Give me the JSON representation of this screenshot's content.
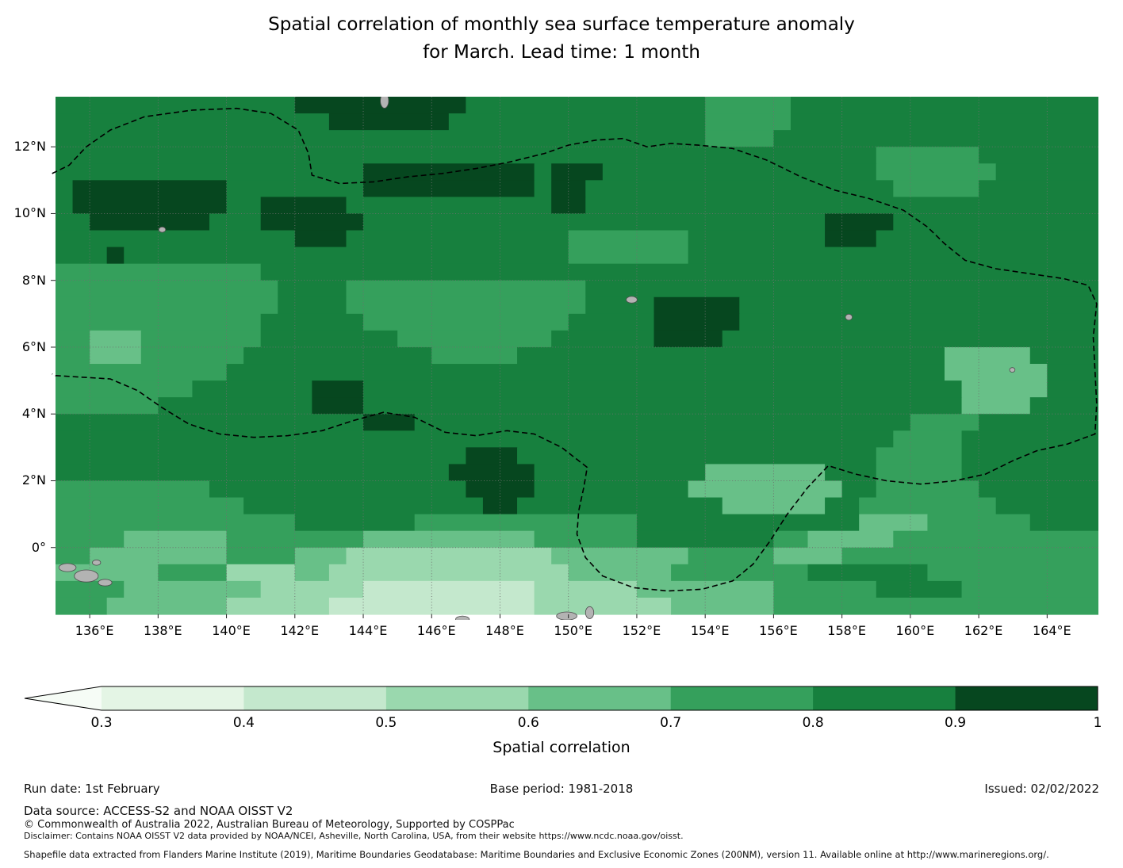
{
  "title": "Spatial correlation of monthly sea surface temperature anomaly\nfor March. Lead time: 1 month",
  "footer": {
    "run_date": "Run date: 1st February",
    "base_period": "Base period: 1981-2018",
    "issued": "Issued: 02/02/2022",
    "data_source": "Data source: ACCESS-S2 and NOAA OISST V2",
    "copyright": "© Commonwealth of Australia 2022, Australian Bureau of Meteorology, Supported by COSPPac",
    "disclaimer": "Disclaimer: Contains NOAA OISST V2 data provided by NOAA/NCEI, Asheville, North Carolina, USA, from their website https://www.ncdc.noaa.gov/oisst.",
    "shapefile": "Shapefile data extracted from Flanders Marine Institute (2019), Maritime Boundaries Geodatabase: Maritime Boundaries and Exclusive Economic Zones (200NM), version 11. Available online at http://www.marineregions.org/."
  },
  "chart_data": {
    "type": "heatmap",
    "title": "Spatial correlation of monthly sea surface temperature anomaly for March. Lead time: 1 month",
    "x_axis": {
      "range": [
        135,
        165.5
      ],
      "tick_values": [
        136,
        138,
        140,
        142,
        144,
        146,
        148,
        150,
        152,
        154,
        156,
        158,
        160,
        162,
        164
      ],
      "tick_labels": [
        "136°E",
        "138°E",
        "140°E",
        "142°E",
        "144°E",
        "146°E",
        "148°E",
        "150°E",
        "152°E",
        "154°E",
        "156°E",
        "158°E",
        "160°E",
        "162°E",
        "164°E"
      ]
    },
    "y_axis": {
      "range": [
        -2,
        13.5
      ],
      "tick_values": [
        0,
        2,
        4,
        6,
        8,
        10,
        12
      ],
      "tick_labels": [
        "0°",
        "2°N",
        "4°N",
        "6°N",
        "8°N",
        "10°N",
        "12°N"
      ]
    },
    "grid": {
      "lon_start": 135,
      "lat_top": 13.5,
      "cell_deg": 0.5,
      "cols": 61,
      "rows": 31
    },
    "bins": [
      {
        "range": "< 0.3",
        "color": "#f6fcf6"
      },
      {
        "range": "0.3-0.4",
        "color": "#e4f5e5"
      },
      {
        "range": "0.4-0.5",
        "color": "#c4e8cd"
      },
      {
        "range": "0.5-0.6",
        "color": "#9ad8ae"
      },
      {
        "range": "0.6-0.7",
        "color": "#68c088"
      },
      {
        "range": "0.7-0.8",
        "color": "#35a05c"
      },
      {
        "range": "0.8-0.9",
        "color": "#17803e"
      },
      {
        "range": "0.9-1.0",
        "color": "#06471f"
      }
    ],
    "rows_rle": [
      [
        [
          6,
          14
        ],
        [
          7,
          10
        ],
        [
          6,
          14
        ],
        [
          5,
          5
        ],
        [
          6,
          18
        ]
      ],
      [
        [
          6,
          16
        ],
        [
          7,
          7
        ],
        [
          6,
          15
        ],
        [
          5,
          5
        ],
        [
          6,
          18
        ]
      ],
      [
        [
          6,
          38
        ],
        [
          5,
          4
        ],
        [
          6,
          19
        ]
      ],
      [
        [
          6,
          48
        ],
        [
          5,
          6
        ],
        [
          6,
          7
        ]
      ],
      [
        [
          6,
          18
        ],
        [
          7,
          10
        ],
        [
          6,
          1
        ],
        [
          7,
          3
        ],
        [
          6,
          16
        ],
        [
          5,
          7
        ],
        [
          6,
          6
        ]
      ],
      [
        [
          6,
          1
        ],
        [
          7,
          9
        ],
        [
          6,
          8
        ],
        [
          7,
          10
        ],
        [
          6,
          1
        ],
        [
          7,
          2
        ],
        [
          6,
          18
        ],
        [
          5,
          5
        ],
        [
          6,
          7
        ]
      ],
      [
        [
          6,
          1
        ],
        [
          7,
          9
        ],
        [
          6,
          2
        ],
        [
          7,
          5
        ],
        [
          6,
          12
        ],
        [
          7,
          2
        ],
        [
          6,
          30
        ]
      ],
      [
        [
          6,
          2
        ],
        [
          7,
          7
        ],
        [
          6,
          3
        ],
        [
          7,
          6
        ],
        [
          6,
          27
        ],
        [
          7,
          4
        ],
        [
          6,
          12
        ]
      ],
      [
        [
          6,
          14
        ],
        [
          7,
          3
        ],
        [
          6,
          13
        ],
        [
          5,
          7
        ],
        [
          6,
          8
        ],
        [
          7,
          3
        ],
        [
          6,
          13
        ]
      ],
      [
        [
          6,
          3
        ],
        [
          7,
          1
        ],
        [
          6,
          26
        ],
        [
          5,
          7
        ],
        [
          6,
          24
        ]
      ],
      [
        [
          5,
          12
        ],
        [
          6,
          49
        ]
      ],
      [
        [
          5,
          13
        ],
        [
          6,
          4
        ],
        [
          5,
          14
        ],
        [
          6,
          30
        ]
      ],
      [
        [
          5,
          13
        ],
        [
          6,
          4
        ],
        [
          5,
          14
        ],
        [
          6,
          4
        ],
        [
          7,
          5
        ],
        [
          6,
          21
        ]
      ],
      [
        [
          5,
          12
        ],
        [
          6,
          6
        ],
        [
          5,
          12
        ],
        [
          6,
          5
        ],
        [
          7,
          5
        ],
        [
          6,
          21
        ]
      ],
      [
        [
          5,
          2
        ],
        [
          4,
          3
        ],
        [
          5,
          7
        ],
        [
          6,
          8
        ],
        [
          5,
          9
        ],
        [
          6,
          6
        ],
        [
          7,
          4
        ],
        [
          6,
          22
        ]
      ],
      [
        [
          5,
          2
        ],
        [
          4,
          3
        ],
        [
          5,
          6
        ],
        [
          6,
          11
        ],
        [
          5,
          5
        ],
        [
          6,
          25
        ],
        [
          4,
          5
        ],
        [
          6,
          4
        ]
      ],
      [
        [
          5,
          10
        ],
        [
          6,
          42
        ],
        [
          4,
          6
        ],
        [
          6,
          3
        ]
      ],
      [
        [
          5,
          8
        ],
        [
          6,
          7
        ],
        [
          7,
          3
        ],
        [
          6,
          35
        ],
        [
          4,
          5
        ],
        [
          6,
          3
        ]
      ],
      [
        [
          5,
          6
        ],
        [
          6,
          9
        ],
        [
          7,
          3
        ],
        [
          6,
          35
        ],
        [
          4,
          4
        ],
        [
          6,
          4
        ]
      ],
      [
        [
          6,
          18
        ],
        [
          7,
          3
        ],
        [
          6,
          29
        ],
        [
          5,
          4
        ],
        [
          6,
          7
        ]
      ],
      [
        [
          6,
          49
        ],
        [
          5,
          4
        ],
        [
          6,
          8
        ]
      ],
      [
        [
          6,
          24
        ],
        [
          7,
          3
        ],
        [
          6,
          21
        ],
        [
          5,
          5
        ],
        [
          6,
          8
        ]
      ],
      [
        [
          6,
          23
        ],
        [
          7,
          5
        ],
        [
          6,
          10
        ],
        [
          4,
          7
        ],
        [
          6,
          3
        ],
        [
          5,
          5
        ],
        [
          6,
          8
        ]
      ],
      [
        [
          5,
          9
        ],
        [
          6,
          15
        ],
        [
          7,
          4
        ],
        [
          6,
          9
        ],
        [
          4,
          9
        ],
        [
          6,
          2
        ],
        [
          5,
          6
        ],
        [
          6,
          7
        ]
      ],
      [
        [
          5,
          11
        ],
        [
          6,
          14
        ],
        [
          7,
          2
        ],
        [
          6,
          12
        ],
        [
          4,
          6
        ],
        [
          6,
          2
        ],
        [
          5,
          8
        ],
        [
          6,
          6
        ]
      ],
      [
        [
          5,
          14
        ],
        [
          6,
          7
        ],
        [
          5,
          13
        ],
        [
          6,
          13
        ],
        [
          4,
          4
        ],
        [
          5,
          6
        ],
        [
          6,
          4
        ]
      ],
      [
        [
          5,
          4
        ],
        [
          4,
          6
        ],
        [
          5,
          8
        ],
        [
          4,
          10
        ],
        [
          5,
          6
        ],
        [
          6,
          8
        ],
        [
          5,
          2
        ],
        [
          4,
          5
        ],
        [
          5,
          12
        ]
      ],
      [
        [
          5,
          2
        ],
        [
          4,
          8
        ],
        [
          5,
          4
        ],
        [
          4,
          3
        ],
        [
          3,
          12
        ],
        [
          4,
          8
        ],
        [
          5,
          5
        ],
        [
          4,
          4
        ],
        [
          5,
          15
        ]
      ],
      [
        [
          4,
          6
        ],
        [
          5,
          4
        ],
        [
          3,
          4
        ],
        [
          4,
          2
        ],
        [
          3,
          14
        ],
        [
          4,
          6
        ],
        [
          5,
          8
        ],
        [
          6,
          7
        ],
        [
          5,
          10
        ]
      ],
      [
        [
          5,
          4
        ],
        [
          4,
          8
        ],
        [
          3,
          6
        ],
        [
          2,
          10
        ],
        [
          3,
          6
        ],
        [
          4,
          8
        ],
        [
          5,
          6
        ],
        [
          6,
          5
        ],
        [
          5,
          8
        ]
      ],
      [
        [
          5,
          3
        ],
        [
          4,
          7
        ],
        [
          3,
          6
        ],
        [
          2,
          12
        ],
        [
          3,
          8
        ],
        [
          4,
          6
        ],
        [
          5,
          19
        ]
      ]
    ],
    "eez_boundary": [
      [
        134.9,
        11.2
      ],
      [
        135.4,
        11.45
      ],
      [
        135.9,
        12.0
      ],
      [
        136.6,
        12.5
      ],
      [
        137.6,
        12.9
      ],
      [
        139.0,
        13.1
      ],
      [
        140.3,
        13.15
      ],
      [
        141.3,
        13.0
      ],
      [
        142.1,
        12.5
      ],
      [
        142.4,
        11.8
      ],
      [
        142.5,
        11.15
      ],
      [
        143.3,
        10.9
      ],
      [
        144.3,
        10.95
      ],
      [
        145.3,
        11.1
      ],
      [
        146.3,
        11.2
      ],
      [
        147.3,
        11.35
      ],
      [
        148.3,
        11.55
      ],
      [
        149.3,
        11.8
      ],
      [
        150.0,
        12.05
      ],
      [
        150.8,
        12.2
      ],
      [
        151.6,
        12.25
      ],
      [
        152.3,
        12.0
      ],
      [
        153.0,
        12.1
      ],
      [
        153.8,
        12.05
      ],
      [
        154.8,
        11.95
      ],
      [
        155.8,
        11.6
      ],
      [
        156.8,
        11.1
      ],
      [
        157.8,
        10.7
      ],
      [
        158.8,
        10.45
      ],
      [
        159.8,
        10.1
      ],
      [
        160.5,
        9.6
      ],
      [
        161.0,
        9.1
      ],
      [
        161.6,
        8.6
      ],
      [
        162.5,
        8.35
      ],
      [
        163.5,
        8.2
      ],
      [
        164.5,
        8.05
      ],
      [
        165.2,
        7.85
      ],
      [
        165.45,
        7.3
      ],
      [
        165.35,
        6.3
      ],
      [
        165.4,
        5.3
      ],
      [
        165.45,
        4.3
      ],
      [
        165.4,
        3.4
      ],
      [
        164.6,
        3.1
      ],
      [
        163.7,
        2.9
      ],
      [
        163.0,
        2.6
      ],
      [
        162.2,
        2.2
      ],
      [
        161.3,
        2.0
      ],
      [
        160.3,
        1.9
      ],
      [
        159.3,
        2.0
      ],
      [
        158.4,
        2.2
      ],
      [
        157.6,
        2.45
      ],
      [
        157.0,
        1.8
      ],
      [
        156.4,
        1.0
      ],
      [
        155.9,
        0.2
      ],
      [
        155.4,
        -0.5
      ],
      [
        154.8,
        -1.0
      ],
      [
        153.9,
        -1.25
      ],
      [
        152.9,
        -1.3
      ],
      [
        151.9,
        -1.2
      ],
      [
        151.0,
        -0.85
      ],
      [
        150.5,
        -0.3
      ],
      [
        150.25,
        0.4
      ],
      [
        150.3,
        1.1
      ],
      [
        150.45,
        1.8
      ],
      [
        150.55,
        2.4
      ],
      [
        149.8,
        3.0
      ],
      [
        149.0,
        3.4
      ],
      [
        148.2,
        3.5
      ],
      [
        147.3,
        3.35
      ],
      [
        146.4,
        3.45
      ],
      [
        145.5,
        3.9
      ],
      [
        144.6,
        4.05
      ],
      [
        143.7,
        3.8
      ],
      [
        142.8,
        3.5
      ],
      [
        141.8,
        3.35
      ],
      [
        140.8,
        3.3
      ],
      [
        139.8,
        3.4
      ],
      [
        138.9,
        3.7
      ],
      [
        138.1,
        4.2
      ],
      [
        137.4,
        4.7
      ],
      [
        136.6,
        5.05
      ],
      [
        135.8,
        5.1
      ],
      [
        135.0,
        5.15
      ],
      [
        134.9,
        5.2
      ]
    ],
    "land": [
      [
        144.62,
        13.38,
        0.12,
        0.22
      ],
      [
        138.12,
        9.52,
        0.1,
        0.08
      ],
      [
        151.85,
        7.42,
        0.16,
        0.1
      ],
      [
        158.2,
        6.9,
        0.1,
        0.09
      ],
      [
        162.98,
        5.32,
        0.08,
        0.07
      ],
      [
        135.35,
        -0.6,
        0.25,
        0.12
      ],
      [
        135.9,
        -0.85,
        0.35,
        0.18
      ],
      [
        136.45,
        -1.05,
        0.2,
        0.1
      ],
      [
        136.2,
        -0.45,
        0.12,
        0.08
      ],
      [
        146.9,
        -2.15,
        0.2,
        0.1
      ],
      [
        149.95,
        -2.05,
        0.3,
        0.12
      ],
      [
        150.62,
        -1.95,
        0.12,
        0.18
      ]
    ],
    "colorbar": {
      "label": "Spatial correlation",
      "tick_labels": [
        "0.3",
        "0.4",
        "0.5",
        "0.6",
        "0.7",
        "0.8",
        "0.9",
        "1"
      ],
      "extend": "min"
    }
  }
}
